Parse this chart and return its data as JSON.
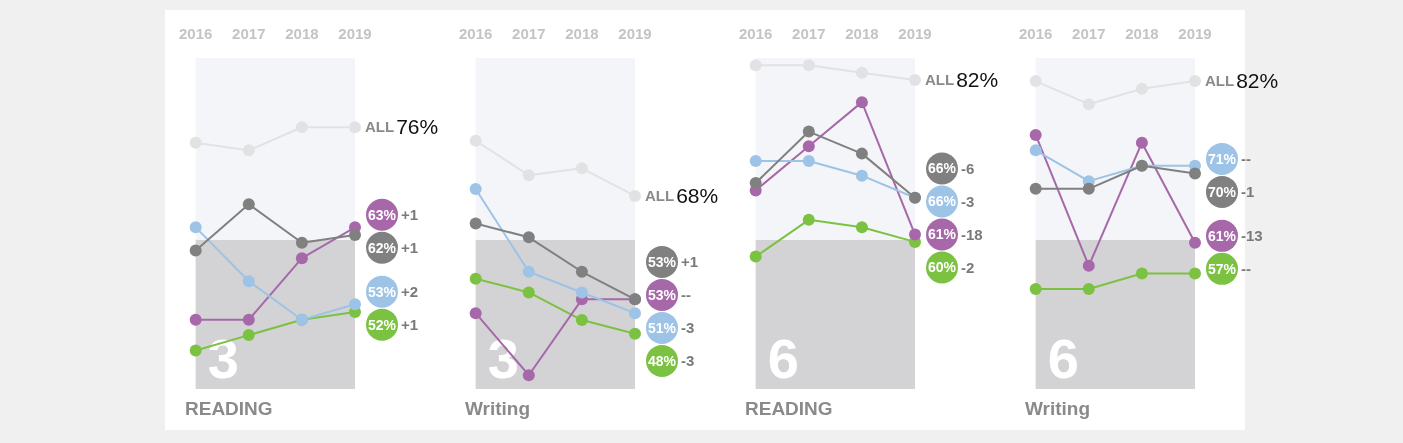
{
  "chart_data": [
    {
      "type": "line",
      "title": "3",
      "subtitle": "READING",
      "categories": [
        "2016",
        "2017",
        "2018",
        "2019"
      ],
      "ylim": [
        42,
        85
      ],
      "tick_labels": "x",
      "marker": "circle",
      "series": [
        {
          "name": "ALL",
          "color": "#e2e2e4",
          "values": [
            74,
            73,
            76,
            76
          ],
          "value_labels": [
            null,
            null,
            null,
            "76%"
          ]
        },
        {
          "color": "#808080",
          "values": [
            60,
            66,
            61,
            62
          ],
          "value_labels": [
            null,
            null,
            null,
            "62%"
          ]
        },
        {
          "color": "#9dc3e6",
          "values": [
            63,
            56,
            51,
            53
          ],
          "value_labels": [
            null,
            null,
            null,
            "53%"
          ]
        },
        {
          "color": "#a668a9",
          "values": [
            51,
            51,
            59,
            63
          ],
          "value_labels": [
            null,
            null,
            null,
            "63%"
          ]
        },
        {
          "color": "#7cc242",
          "values": [
            47,
            49,
            51,
            52
          ],
          "value_labels": [
            null,
            null,
            null,
            "52%"
          ]
        }
      ],
      "annotations": [
        "+1",
        "+2",
        "+1",
        "+1"
      ]
    },
    {
      "type": "line",
      "title": "3",
      "subtitle": "Writing",
      "categories": [
        "2016",
        "2017",
        "2018",
        "2019"
      ],
      "ylim": [
        40,
        88
      ],
      "tick_labels": "x",
      "marker": "circle",
      "series": [
        {
          "name": "ALL",
          "color": "#e2e2e4",
          "values": [
            76,
            71,
            72,
            68
          ],
          "value_labels": [
            null,
            null,
            null,
            "68%"
          ]
        },
        {
          "color": "#808080",
          "values": [
            64,
            62,
            57,
            53
          ],
          "value_labels": [
            null,
            null,
            null,
            "53%"
          ]
        },
        {
          "color": "#9dc3e6",
          "values": [
            69,
            57,
            54,
            51
          ],
          "value_labels": [
            null,
            null,
            null,
            "51%"
          ]
        },
        {
          "color": "#a668a9",
          "values": [
            51,
            42,
            53,
            53
          ],
          "value_labels": [
            null,
            null,
            null,
            "53%"
          ]
        },
        {
          "color": "#7cc242",
          "values": [
            56,
            54,
            50,
            48
          ],
          "value_labels": [
            null,
            null,
            null,
            "48%"
          ]
        }
      ],
      "annotations": [
        "+1",
        "-3",
        "--",
        "-3"
      ]
    },
    {
      "type": "line",
      "title": "6",
      "subtitle": "READING",
      "categories": [
        "2016",
        "2017",
        "2018",
        "2019"
      ],
      "ylim": [
        40,
        85
      ],
      "tick_labels": "x",
      "marker": "circle",
      "series": [
        {
          "name": "ALL",
          "color": "#e2e2e4",
          "values": [
            84,
            84,
            83,
            82
          ],
          "value_labels": [
            null,
            null,
            null,
            "82%"
          ]
        },
        {
          "color": "#808080",
          "values": [
            68,
            75,
            72,
            66
          ],
          "value_labels": [
            null,
            null,
            null,
            "66%"
          ]
        },
        {
          "color": "#9dc3e6",
          "values": [
            71,
            71,
            69,
            66
          ],
          "value_labels": [
            null,
            null,
            null,
            "66%"
          ]
        },
        {
          "color": "#a668a9",
          "values": [
            67,
            73,
            79,
            61
          ],
          "value_labels": [
            null,
            null,
            null,
            "61%"
          ]
        },
        {
          "color": "#7cc242",
          "values": [
            58,
            63,
            62,
            60
          ],
          "value_labels": [
            null,
            null,
            null,
            "60%"
          ]
        }
      ],
      "annotations": [
        "-6",
        "-3",
        "-18",
        "-2"
      ]
    },
    {
      "type": "line",
      "title": "6",
      "subtitle": "Writing",
      "categories": [
        "2016",
        "2017",
        "2018",
        "2019"
      ],
      "ylim": [
        42,
        85
      ],
      "tick_labels": "x",
      "marker": "circle",
      "series": [
        {
          "name": "ALL",
          "color": "#e2e2e4",
          "values": [
            82,
            79,
            81,
            82
          ],
          "value_labels": [
            null,
            null,
            null,
            "82%"
          ]
        },
        {
          "color": "#808080",
          "values": [
            68,
            68,
            71,
            70
          ],
          "value_labels": [
            null,
            null,
            null,
            "70%"
          ]
        },
        {
          "color": "#9dc3e6",
          "values": [
            73,
            69,
            71,
            71
          ],
          "value_labels": [
            null,
            null,
            null,
            "71%"
          ]
        },
        {
          "color": "#a668a9",
          "values": [
            75,
            58,
            74,
            61
          ],
          "value_labels": [
            null,
            null,
            null,
            "61%"
          ]
        },
        {
          "color": "#7cc242",
          "values": [
            55,
            55,
            57,
            57
          ],
          "value_labels": [
            null,
            null,
            null,
            "57%"
          ]
        }
      ],
      "annotations": [
        "-1",
        "--",
        "-13",
        "--"
      ]
    }
  ]
}
